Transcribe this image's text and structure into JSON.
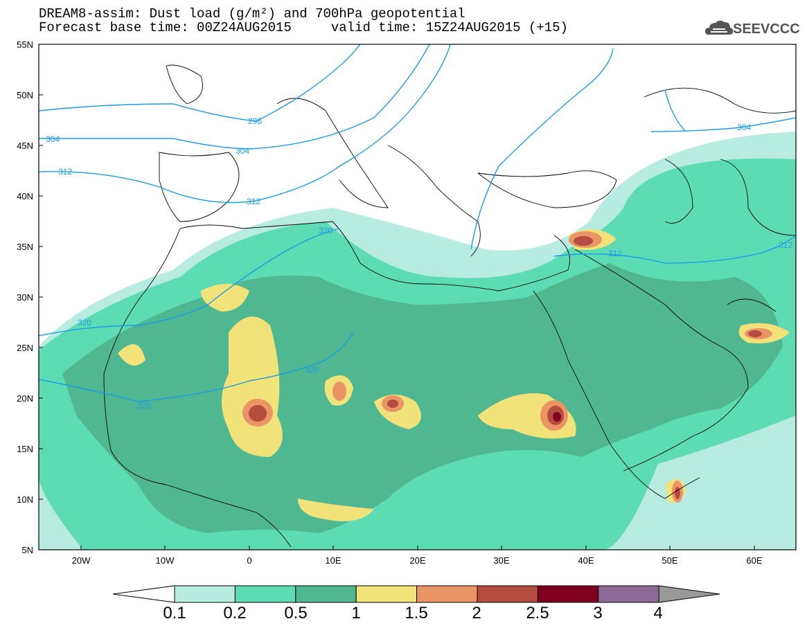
{
  "title": {
    "line1": "DREAM8-assim: Dust load (g/m²) and 700hPa geopotential",
    "line2": "Forecast base time: 00Z24AUG2015     valid time: 15Z24AUG2015 (+15)"
  },
  "logo": {
    "text": "SEEVCCC",
    "icon": "cloud-icon"
  },
  "axes": {
    "lat_labels": [
      "55N",
      "50N",
      "45N",
      "40N",
      "35N",
      "30N",
      "25N",
      "20N",
      "15N",
      "10N",
      "5N"
    ],
    "lon_labels": [
      "20W",
      "10W",
      "0",
      "10E",
      "20E",
      "30E",
      "40E",
      "50E",
      "60E"
    ],
    "lat_range": [
      5,
      55
    ],
    "lon_range": [
      -25,
      65
    ]
  },
  "contours": {
    "geopotential_labels": [
      "296",
      "304",
      "304",
      "312",
      "312",
      "312",
      "320",
      "320",
      "320",
      "320",
      "304",
      "312"
    ]
  },
  "colorbar": {
    "levels": [
      "0.1",
      "0.2",
      "0.5",
      "1",
      "1.5",
      "2",
      "2.5",
      "3",
      "4"
    ],
    "colors": [
      "#b8ece0",
      "#5ddcb4",
      "#50b890",
      "#f2e27a",
      "#eb9466",
      "#b44c40",
      "#800020",
      "#8c6a98"
    ],
    "under_color": "#ffffff",
    "over_color": "#999999"
  }
}
